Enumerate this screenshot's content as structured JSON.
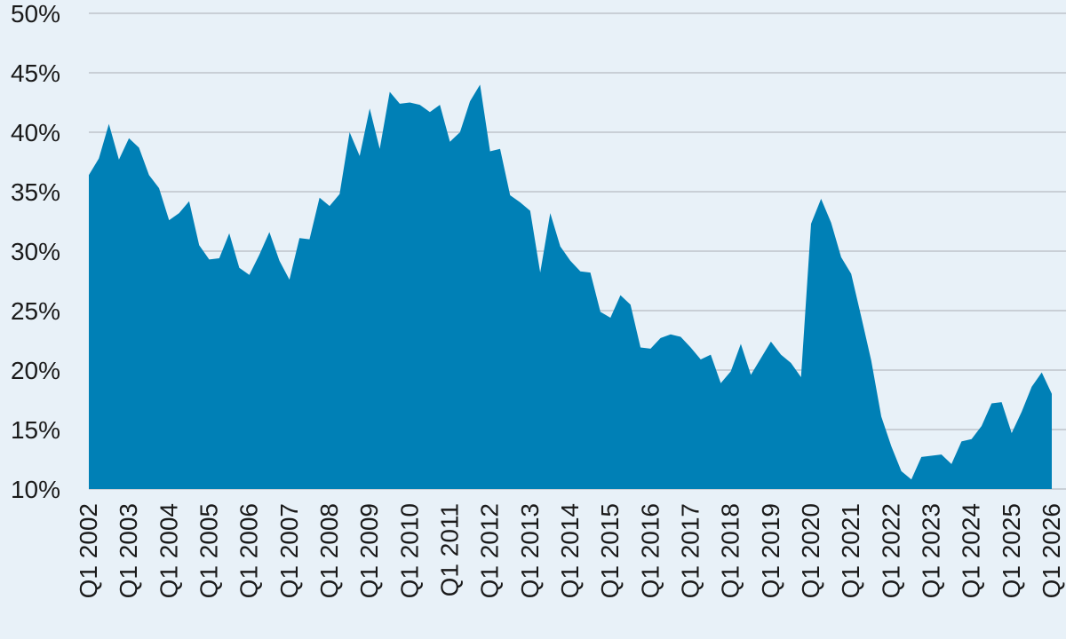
{
  "chart_data": {
    "type": "area",
    "title": "",
    "xlabel": "",
    "ylabel": "",
    "ylim": [
      10,
      50
    ],
    "yticks": [
      "10%",
      "15%",
      "20%",
      "25%",
      "30%",
      "35%",
      "40%",
      "45%",
      "50%"
    ],
    "grid": "horizontal",
    "xticks": [
      "Q1 2002",
      "Q1 2003",
      "Q1 2004",
      "Q1 2005",
      "Q1 2006",
      "Q1 2007",
      "Q1 2008",
      "Q1 2009",
      "Q1 2010",
      "Q1 2011",
      "Q1 2012",
      "Q1 2013",
      "Q1 2014",
      "Q1 2015",
      "Q1 2016",
      "Q1 2017",
      "Q1 2018",
      "Q1 2019",
      "Q1 2020",
      "Q1 2021",
      "Q1 2022",
      "Q1 2023",
      "Q1 2024",
      "Q1 2025",
      "Q1 2026"
    ],
    "colors": {
      "area": "#0080b6",
      "background": "#e8f1f8",
      "grid": "#c9cfd6"
    },
    "x_start": "Q1 2002",
    "x_end": "Q1 2026",
    "series": [
      {
        "values": [
          36.4,
          37.8,
          40.7,
          37.7,
          39.5,
          38.7,
          36.4,
          35.3,
          32.6,
          33.2,
          34.2,
          30.5,
          29.3,
          29.4,
          31.5,
          28.6,
          28.0,
          29.7,
          31.6,
          29.2,
          27.6,
          31.1,
          31.0,
          34.5,
          33.8,
          34.8,
          40.0,
          38.0,
          42.0,
          38.6,
          43.4,
          42.4,
          42.5,
          42.3,
          41.7,
          42.3,
          39.2,
          40.0,
          42.6,
          44.0,
          38.4,
          38.6,
          34.7,
          34.1,
          33.4,
          28.2,
          33.2,
          30.4,
          29.2,
          28.3,
          28.2,
          24.9,
          24.4,
          26.3,
          25.5,
          21.9,
          21.8,
          22.7,
          23.0,
          22.8,
          21.9,
          20.9,
          21.3,
          18.9,
          19.9,
          22.2,
          19.6,
          21.0,
          22.4,
          21.3,
          20.6,
          19.4,
          32.3,
          34.4,
          32.4,
          29.5,
          28.1,
          24.5,
          20.8,
          16.1,
          13.6,
          11.5,
          10.8,
          12.7,
          12.8,
          12.9,
          12.1,
          14.0,
          14.2,
          15.3,
          17.2,
          17.3,
          14.7,
          16.5,
          18.6,
          19.8,
          18.0
        ]
      }
    ]
  }
}
